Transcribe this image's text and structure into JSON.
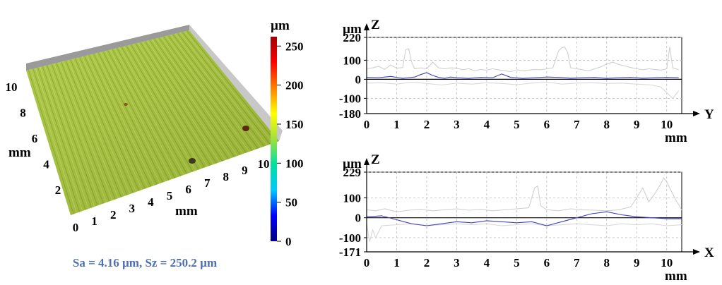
{
  "surface": {
    "type": "3d-surface",
    "axis_left": {
      "label": "mm",
      "ticks": [
        "2",
        "4",
        "6",
        "8",
        "10"
      ]
    },
    "axis_bottom": {
      "label": "mm",
      "ticks": [
        "0",
        "1",
        "2",
        "3",
        "4",
        "5",
        "6",
        "7",
        "8",
        "9",
        "10"
      ]
    },
    "colorbar": {
      "unit": "µm",
      "ticks": [
        "250",
        "200",
        "150",
        "100",
        "50",
        "0"
      ],
      "tick_values": [
        250,
        200,
        150,
        100,
        50,
        0
      ],
      "range": [
        0,
        262
      ],
      "colors": [
        "#000080",
        "#0000ff",
        "#00c8ff",
        "#00e0a0",
        "#a0e040",
        "#ffff00",
        "#ff8000",
        "#ff0000",
        "#a00000"
      ]
    },
    "surface_color": "#a6c43a",
    "caption": "Sa = 4.16 µm, Sz = 250.2 µm"
  },
  "chart_data": [
    {
      "type": "line",
      "ylabel_unit": "µm",
      "ylabel": "Z",
      "xlabel": "Y",
      "xunit": "mm",
      "xlim": [
        0,
        10.5
      ],
      "ylim": [
        -180,
        220
      ],
      "yticks": [
        "220",
        "100",
        "0",
        "-100",
        "-180"
      ],
      "ytick_values": [
        220,
        100,
        0,
        -100,
        -180
      ],
      "xticks": [
        "0",
        "1",
        "2",
        "3",
        "4",
        "5",
        "6",
        "7",
        "8",
        "9",
        "10"
      ],
      "grid": true,
      "series": [
        {
          "color": "#d0d0d0",
          "x": [
            0,
            0.2,
            0.4,
            0.6,
            0.8,
            1.0,
            1.2,
            1.3,
            1.4,
            1.5,
            1.6,
            1.8,
            2.0,
            2.2,
            2.4,
            2.6,
            2.8,
            3.0,
            3.2,
            3.4,
            3.6,
            3.8,
            4.0,
            4.2,
            4.4,
            4.6,
            4.8,
            5.0,
            5.2,
            5.4,
            5.6,
            5.8,
            6.0,
            6.2,
            6.4,
            6.5,
            6.6,
            6.7,
            6.8,
            7.0,
            7.2,
            7.4,
            7.6,
            7.8,
            8.0,
            8.2,
            8.4,
            8.6,
            8.8,
            9.0,
            9.2,
            9.4,
            9.6,
            9.8,
            10.0,
            10.1,
            10.2,
            10.4
          ],
          "y": [
            55,
            60,
            68,
            52,
            75,
            58,
            62,
            155,
            160,
            90,
            55,
            60,
            55,
            90,
            60,
            55,
            60,
            58,
            50,
            55,
            45,
            52,
            48,
            55,
            50,
            45,
            40,
            50,
            45,
            48,
            52,
            50,
            55,
            60,
            150,
            165,
            170,
            140,
            60,
            55,
            50,
            45,
            55,
            65,
            80,
            90,
            78,
            70,
            62,
            55,
            50,
            55,
            52,
            48,
            55,
            170,
            60,
            50
          ]
        },
        {
          "color": "#d8d8d8",
          "x": [
            0,
            0.5,
            1.0,
            1.5,
            2.0,
            2.5,
            3.0,
            3.5,
            4.0,
            4.5,
            5.0,
            5.5,
            6.0,
            6.5,
            7.0,
            7.5,
            8.0,
            8.5,
            9.0,
            9.5,
            9.8,
            10.0,
            10.2,
            10.4
          ],
          "y": [
            -20,
            -18,
            -25,
            -15,
            -22,
            -30,
            -20,
            -25,
            -18,
            -22,
            -28,
            -20,
            -15,
            -25,
            -20,
            -18,
            -22,
            -20,
            -25,
            -30,
            -40,
            -70,
            -100,
            -60
          ]
        },
        {
          "color": "#4040c0",
          "x": [
            0,
            0.4,
            0.8,
            1.2,
            1.6,
            1.8,
            2.0,
            2.2,
            2.4,
            2.6,
            2.8,
            3.0,
            3.4,
            3.8,
            4.2,
            4.5,
            4.8,
            5.2,
            5.6,
            6.0,
            6.4,
            6.8,
            7.2,
            7.6,
            8.0,
            8.4,
            8.8,
            9.2,
            9.6,
            10.0,
            10.4
          ],
          "y": [
            10,
            8,
            15,
            5,
            12,
            25,
            35,
            20,
            10,
            5,
            12,
            8,
            5,
            10,
            8,
            28,
            10,
            5,
            8,
            12,
            10,
            6,
            8,
            10,
            5,
            8,
            10,
            6,
            8,
            10,
            8
          ]
        }
      ]
    },
    {
      "type": "line",
      "ylabel_unit": "µm",
      "ylabel": "Z",
      "xlabel": "X",
      "xunit": "mm",
      "xlim": [
        0,
        10.5
      ],
      "ylim": [
        -171,
        229
      ],
      "yticks": [
        "229",
        "100",
        "0",
        "-100",
        "-171"
      ],
      "ytick_values": [
        229,
        100,
        0,
        -100,
        -171
      ],
      "xticks": [
        "0",
        "1",
        "2",
        "3",
        "4",
        "5",
        "6",
        "7",
        "8",
        "9",
        "10"
      ],
      "grid": true,
      "series": [
        {
          "color": "#d0d0d0",
          "x": [
            0,
            0.3,
            0.6,
            1.0,
            1.4,
            1.8,
            2.2,
            2.6,
            3.0,
            3.4,
            3.8,
            4.2,
            4.6,
            5.0,
            5.4,
            5.6,
            5.7,
            5.8,
            6.0,
            6.4,
            6.8,
            7.2,
            7.6,
            8.0,
            8.4,
            8.8,
            9.0,
            9.2,
            9.4,
            9.6,
            9.8,
            9.9,
            10.0,
            10.1,
            10.3,
            10.5
          ],
          "y": [
            40,
            35,
            45,
            30,
            38,
            42,
            35,
            40,
            45,
            38,
            42,
            35,
            40,
            45,
            50,
            150,
            160,
            60,
            40,
            35,
            45,
            40,
            38,
            35,
            40,
            55,
            100,
            150,
            80,
            120,
            170,
            200,
            180,
            150,
            90,
            40
          ]
        },
        {
          "color": "#d8d8d8",
          "x": [
            0,
            0.1,
            0.2,
            0.3,
            0.5,
            1.0,
            1.5,
            2.0,
            2.5,
            3.0,
            3.5,
            4.0,
            4.5,
            5.0,
            5.5,
            6.0,
            6.5,
            7.0,
            7.5,
            8.0,
            8.5,
            9.0,
            9.5,
            10.0,
            10.5
          ],
          "y": [
            -30,
            -120,
            -60,
            -100,
            -40,
            -35,
            -30,
            -40,
            -35,
            -30,
            -35,
            -30,
            -40,
            -35,
            -30,
            -40,
            -35,
            -30,
            -35,
            -40,
            -30,
            -35,
            -30,
            -40,
            -35
          ]
        },
        {
          "color": "#4040c0",
          "x": [
            0,
            0.5,
            1.0,
            1.5,
            2.0,
            2.5,
            3.0,
            3.5,
            4.0,
            4.5,
            5.0,
            5.5,
            6.0,
            6.5,
            7.0,
            7.5,
            8.0,
            8.5,
            9.0,
            9.5,
            10.0,
            10.5
          ],
          "y": [
            5,
            10,
            -10,
            -30,
            -40,
            -30,
            -20,
            -25,
            -15,
            -20,
            -25,
            -20,
            -40,
            -20,
            0,
            20,
            30,
            15,
            5,
            0,
            -5,
            -5
          ]
        }
      ]
    }
  ]
}
